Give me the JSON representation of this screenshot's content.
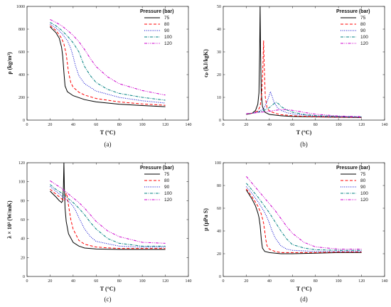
{
  "legend_title": "Pressure (bar)",
  "series_styles": [
    {
      "name": "75",
      "color": "#000000",
      "dash": ""
    },
    {
      "name": "80",
      "color": "#ff0000",
      "dash": "4,2.5"
    },
    {
      "name": "90",
      "color": "#0000cc",
      "dash": "1,1.6"
    },
    {
      "name": "100",
      "color": "#008080",
      "dash": "4,1.5,1,1.5"
    },
    {
      "name": "120",
      "color": "#cc00cc",
      "dash": "4,1.5,1,1.5,1,1.5"
    }
  ],
  "chart_data": [
    {
      "type": "line",
      "caption": "(a)",
      "xlabel": "T (°C)",
      "ylabel": "ρ (kg/m³)",
      "xlim": [
        0,
        140
      ],
      "ylim": [
        0,
        1000
      ],
      "xticks": [
        0,
        20,
        40,
        60,
        80,
        100,
        120,
        140
      ],
      "yticks": [
        0,
        200,
        400,
        600,
        800,
        1000
      ],
      "series": [
        {
          "name": "75",
          "x": [
            20,
            25,
            28,
            30,
            31,
            32,
            33,
            35,
            40,
            50,
            60,
            80,
            100,
            120
          ],
          "y": [
            820,
            770,
            720,
            640,
            560,
            420,
            300,
            250,
            215,
            180,
            160,
            140,
            128,
            118
          ]
        },
        {
          "name": "80",
          "x": [
            20,
            25,
            30,
            32,
            34,
            35,
            36,
            38,
            40,
            45,
            50,
            60,
            80,
            100,
            120
          ],
          "y": [
            830,
            790,
            720,
            670,
            580,
            500,
            420,
            330,
            290,
            245,
            220,
            190,
            160,
            142,
            130
          ]
        },
        {
          "name": "90",
          "x": [
            20,
            25,
            30,
            35,
            38,
            40,
            42,
            45,
            50,
            60,
            80,
            100,
            120
          ],
          "y": [
            845,
            810,
            765,
            700,
            630,
            560,
            480,
            390,
            320,
            255,
            200,
            170,
            150
          ]
        },
        {
          "name": "100",
          "x": [
            20,
            25,
            30,
            35,
            40,
            45,
            48,
            50,
            55,
            60,
            70,
            80,
            100,
            120
          ],
          "y": [
            860,
            830,
            790,
            740,
            680,
            600,
            520,
            470,
            390,
            330,
            270,
            235,
            200,
            175
          ]
        },
        {
          "name": "120",
          "x": [
            20,
            25,
            30,
            35,
            40,
            45,
            50,
            55,
            60,
            70,
            80,
            100,
            120
          ],
          "y": [
            885,
            860,
            830,
            790,
            745,
            690,
            620,
            540,
            470,
            380,
            320,
            260,
            220
          ]
        }
      ]
    },
    {
      "type": "line",
      "caption": "(b)",
      "xlabel": "T (°C)",
      "ylabel": "cₚ (kJ/kgK)",
      "xlim": [
        0,
        140
      ],
      "ylim": [
        0,
        50
      ],
      "xticks": [
        0,
        20,
        40,
        60,
        80,
        100,
        120,
        140
      ],
      "yticks": [
        0,
        10,
        20,
        30,
        40,
        50
      ],
      "series": [
        {
          "name": "75",
          "x": [
            20,
            25,
            28,
            30,
            31,
            31.6,
            32,
            32.4,
            33,
            34,
            36,
            40,
            50,
            60,
            80,
            100,
            120
          ],
          "y": [
            2.5,
            3.0,
            4.2,
            7,
            12,
            30,
            50,
            30,
            12,
            6,
            3.5,
            2.5,
            1.9,
            1.6,
            1.4,
            1.25,
            1.15
          ]
        },
        {
          "name": "80",
          "x": [
            20,
            25,
            30,
            32,
            33.5,
            34.5,
            35,
            35.5,
            36.5,
            38,
            40,
            45,
            50,
            60,
            80,
            100,
            120
          ],
          "y": [
            2.6,
            3.0,
            4.0,
            6,
            12,
            25,
            35,
            25,
            10,
            5.5,
            4,
            3,
            2.4,
            1.9,
            1.5,
            1.3,
            1.2
          ]
        },
        {
          "name": "90",
          "x": [
            20,
            25,
            30,
            35,
            38,
            40,
            41,
            42,
            44,
            47,
            50,
            55,
            60,
            80,
            100,
            120
          ],
          "y": [
            2.7,
            3.0,
            3.6,
            5,
            8,
            11,
            12.5,
            11,
            8,
            5.5,
            4.3,
            3.3,
            2.7,
            1.8,
            1.5,
            1.3
          ]
        },
        {
          "name": "100",
          "x": [
            20,
            30,
            35,
            40,
            44,
            46,
            48,
            50,
            55,
            60,
            70,
            80,
            100,
            120
          ],
          "y": [
            2.7,
            3.4,
            4.2,
            5.5,
            7.2,
            7.8,
            7.2,
            6.0,
            4.5,
            3.5,
            2.5,
            2.0,
            1.6,
            1.4
          ]
        },
        {
          "name": "120",
          "x": [
            20,
            30,
            40,
            45,
            50,
            55,
            60,
            65,
            70,
            80,
            100,
            120
          ],
          "y": [
            2.8,
            3.3,
            3.9,
            4.3,
            4.6,
            4.6,
            4.3,
            3.9,
            3.4,
            2.6,
            1.8,
            1.5
          ]
        }
      ]
    },
    {
      "type": "line",
      "caption": "(c)",
      "xlabel": "T (°C)",
      "ylabel": "λ × 10³ (W/mK)",
      "xlim": [
        0,
        140
      ],
      "ylim": [
        0,
        120
      ],
      "xticks": [
        0,
        20,
        40,
        60,
        80,
        100,
        120,
        140
      ],
      "yticks": [
        0,
        20,
        40,
        60,
        80,
        100,
        120
      ],
      "series": [
        {
          "name": "75",
          "x": [
            20,
            25,
            28,
            30,
            31,
            31.6,
            32,
            32.4,
            33,
            34,
            36,
            40,
            45,
            50,
            60,
            80,
            100,
            120
          ],
          "y": [
            90,
            84,
            80,
            78,
            80,
            95,
            120,
            95,
            72,
            58,
            45,
            36,
            32,
            30,
            29,
            28.5,
            28.5,
            28.5
          ]
        },
        {
          "name": "80",
          "x": [
            20,
            25,
            30,
            32,
            33,
            34,
            35,
            36,
            38,
            40,
            45,
            50,
            60,
            80,
            100,
            120
          ],
          "y": [
            92,
            87,
            82,
            80,
            82,
            88,
            84,
            75,
            60,
            50,
            38,
            34,
            31,
            29.5,
            29.5,
            29.5
          ]
        },
        {
          "name": "90",
          "x": [
            20,
            25,
            30,
            35,
            38,
            40,
            42,
            45,
            50,
            55,
            60,
            80,
            100,
            120
          ],
          "y": [
            95,
            90,
            85,
            80,
            77,
            74,
            70,
            62,
            50,
            42,
            37,
            32,
            31,
            31
          ]
        },
        {
          "name": "100",
          "x": [
            20,
            25,
            30,
            35,
            40,
            45,
            50,
            55,
            60,
            70,
            80,
            100,
            120
          ],
          "y": [
            97,
            92,
            88,
            83,
            78,
            72,
            65,
            57,
            50,
            40,
            35,
            32,
            32
          ]
        },
        {
          "name": "120",
          "x": [
            20,
            25,
            30,
            35,
            40,
            45,
            50,
            55,
            60,
            70,
            80,
            100,
            120
          ],
          "y": [
            101,
            97,
            93,
            88,
            83,
            78,
            72,
            65,
            58,
            48,
            42,
            36,
            35
          ]
        }
      ]
    },
    {
      "type": "line",
      "caption": "(d)",
      "xlabel": "T (°C)",
      "ylabel": "μ (μPa S)",
      "xlim": [
        0,
        140
      ],
      "ylim": [
        0,
        100
      ],
      "xticks": [
        0,
        20,
        40,
        60,
        80,
        100,
        120,
        140
      ],
      "yticks": [
        0,
        20,
        40,
        60,
        80,
        100
      ],
      "series": [
        {
          "name": "75",
          "x": [
            20,
            25,
            28,
            30,
            31,
            32,
            33,
            34,
            36,
            40,
            50,
            60,
            80,
            100,
            120
          ],
          "y": [
            76,
            68,
            62,
            56,
            52,
            45,
            33,
            25,
            22,
            21,
            20,
            20,
            20.5,
            21,
            21
          ]
        },
        {
          "name": "80",
          "x": [
            20,
            25,
            30,
            33,
            35,
            36,
            37,
            38,
            40,
            45,
            50,
            60,
            80,
            100,
            120
          ],
          "y": [
            77,
            70,
            62,
            55,
            47,
            40,
            32,
            27,
            24,
            22,
            21,
            21,
            21,
            21.5,
            21.5
          ]
        },
        {
          "name": "90",
          "x": [
            20,
            25,
            30,
            35,
            38,
            40,
            42,
            45,
            50,
            55,
            60,
            80,
            100,
            120
          ],
          "y": [
            79,
            73,
            66,
            58,
            52,
            47,
            41,
            34,
            27,
            24,
            23,
            22,
            22,
            22
          ]
        },
        {
          "name": "100",
          "x": [
            20,
            25,
            30,
            35,
            40,
            45,
            50,
            55,
            60,
            70,
            80,
            100,
            120
          ],
          "y": [
            82,
            76,
            70,
            63,
            56,
            48,
            40,
            33,
            28,
            25,
            23.5,
            23,
            23
          ]
        },
        {
          "name": "120",
          "x": [
            20,
            25,
            30,
            35,
            40,
            45,
            50,
            55,
            60,
            70,
            80,
            100,
            120
          ],
          "y": [
            88,
            82,
            76,
            70,
            64,
            58,
            51,
            44,
            38,
            30,
            26,
            24,
            24
          ]
        }
      ]
    }
  ]
}
